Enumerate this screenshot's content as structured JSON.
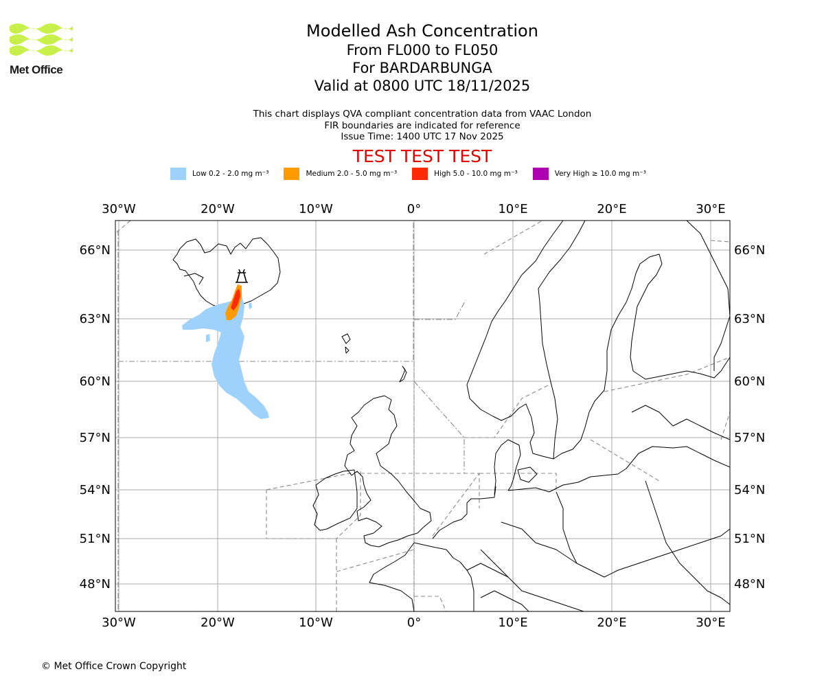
{
  "header": {
    "title": "Modelled Ash Concentration",
    "levels": "From FL000 to FL050",
    "volcano": "For BARDARBUNGA",
    "valid": "Valid at 0800 UTC 18/11/2025"
  },
  "logo": {
    "text": "Met Office",
    "color": "#c8f04a"
  },
  "subtitle": {
    "line1": "This chart displays QVA compliant concentration data from VAAC London",
    "line2": "FIR boundaries are indicated for reference",
    "line3": "Issue Time: 1400 UTC 17 Nov 2025"
  },
  "test_banner": "TEST TEST TEST",
  "legend": [
    {
      "label": "Low 0.2 - 2.0 mg m⁻³",
      "color": "#9ed2fc"
    },
    {
      "label": "Medium 2.0 - 5.0 mg m⁻³",
      "color": "#ff9a00"
    },
    {
      "label": "High 5.0 - 10.0 mg m⁻³",
      "color": "#ff2a00"
    },
    {
      "label": "Very High ≥ 10.0 mg m⁻³",
      "color": "#ae00b0"
    }
  ],
  "axes": {
    "lon_labels": [
      "30°W",
      "20°W",
      "10°W",
      "0°",
      "10°E",
      "20°E",
      "30°E"
    ],
    "lat_labels": [
      "66°N",
      "63°N",
      "60°N",
      "57°N",
      "54°N",
      "51°N",
      "48°N"
    ]
  },
  "copyright": "© Met Office Crown Copyright"
}
